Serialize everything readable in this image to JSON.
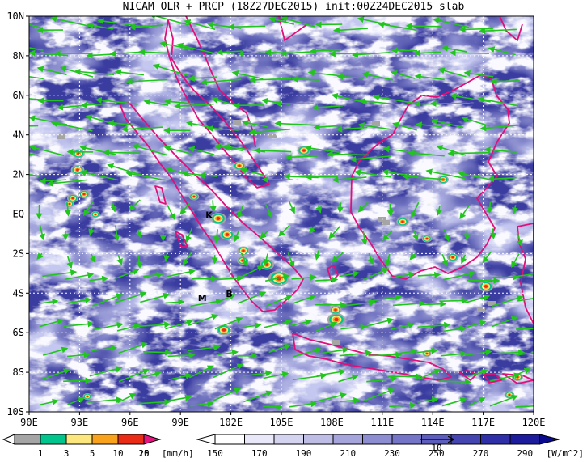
{
  "title": "NICAM OLR + PRCP (18Z27DEC2015) init:00Z24DEC2015 slab",
  "colors": {
    "ocean_base": "#3a3ca0",
    "cloud": "#f2f2ff",
    "coast": "#e0107a",
    "wind": "#22c51e",
    "grid": "#ffffff"
  },
  "map": {
    "lon_labels": [
      "90E",
      "93E",
      "96E",
      "99E",
      "102E",
      "105E",
      "108E",
      "111E",
      "114E",
      "117E",
      "120E"
    ],
    "lat_labels": [
      "10N",
      "8N",
      "6N",
      "4N",
      "2N",
      "EQ",
      "2S",
      "4S",
      "6S",
      "8S",
      "10S"
    ],
    "lon_range": [
      90,
      120
    ],
    "lat_range": [
      -10,
      10
    ],
    "place_labels": [
      {
        "id": "k",
        "text": "K",
        "lon": 100.7,
        "lat": -0.2
      },
      {
        "id": "m",
        "text": "M",
        "lon": 100.3,
        "lat": -4.4
      },
      {
        "id": "b",
        "text": "B",
        "lon": 101.9,
        "lat": -4.2
      }
    ]
  },
  "prcp_colorbar": {
    "ticks": [
      "1",
      "3",
      "5",
      "10",
      "15",
      "20"
    ],
    "unit": "[mm/h]",
    "colors": [
      "#a5a5a5",
      "#00c58c",
      "#fbe77e",
      "#f9a21e",
      "#ea2b16",
      "#e6157d"
    ]
  },
  "olr_colorbar": {
    "ticks": [
      "150",
      "170",
      "190",
      "210",
      "230",
      "250",
      "270",
      "290"
    ],
    "unit": "[W/m^2]",
    "ref_arrow_label": "10",
    "colors": [
      "#ffffff",
      "#e8e8f8",
      "#d4d4f0",
      "#bdbde6",
      "#a5a5dc",
      "#8d8dd2",
      "#7575c8",
      "#5d5dbe",
      "#4545b2",
      "#2f2fa8",
      "#1c1c9c",
      "#0b0b90"
    ]
  }
}
